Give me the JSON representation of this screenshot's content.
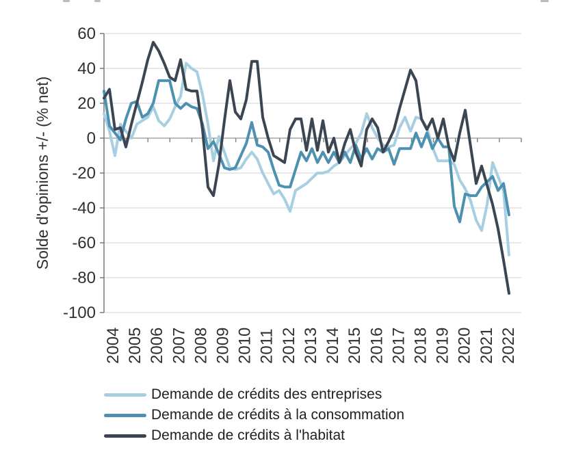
{
  "chart_data": {
    "type": "line",
    "title": "",
    "ylabel": "Solde d'opinions +/- (% net)",
    "ylim": [
      -100,
      60
    ],
    "y_ticks": [
      60,
      40,
      20,
      0,
      -20,
      -40,
      -60,
      -80,
      -100
    ],
    "x_years": [
      "2004",
      "2005",
      "2006",
      "2007",
      "2008",
      "2009",
      "2010",
      "2011",
      "2012",
      "2013",
      "2014",
      "2015",
      "2016",
      "2017",
      "2018",
      "2019",
      "2020",
      "2021",
      "2022"
    ],
    "frequency": "quarterly",
    "x_range": "2004Q1 - 2022Q3",
    "grid": "horizontal",
    "legend_position": "bottom-left",
    "colors": {
      "gridline": "#d9d9d9",
      "zero_line": "#a6a6a6",
      "axis": "#808080",
      "tick_text": "#303030",
      "legend_text": "#1f1f1f"
    },
    "series": [
      {
        "id": "entreprises",
        "name": "Demande de crédits des entreprises",
        "color": "#a8cee2",
        "values": [
          14,
          4,
          -10,
          8,
          4,
          0,
          8,
          10,
          12,
          18,
          10,
          7,
          11,
          18,
          24,
          43,
          40,
          38,
          25,
          8,
          -13,
          1,
          -8,
          -17,
          -18,
          -17,
          -12,
          -8,
          -12,
          -20,
          -26,
          -32,
          -30,
          -35,
          -42,
          -30,
          -28,
          -26,
          -23,
          -20,
          -20,
          -19,
          -16,
          -14,
          -10,
          -6,
          -3,
          3,
          14,
          6,
          0,
          -4,
          -5,
          -4,
          6,
          12,
          4,
          12,
          11,
          6,
          -5,
          -13,
          -13,
          -13,
          -15,
          -24,
          -29,
          -36,
          -47,
          -53,
          -38,
          -14,
          -22,
          -30,
          -67
        ]
      },
      {
        "id": "consommation",
        "name": "Demande de crédits à la consommation",
        "color": "#4d91b0",
        "values": [
          27,
          7,
          3,
          -1,
          11,
          20,
          21,
          12,
          14,
          20,
          33,
          33,
          33,
          20,
          17,
          20,
          18,
          17,
          8,
          -6,
          -2,
          -9,
          -17,
          -18,
          -17,
          -10,
          -3,
          9,
          -4,
          -5,
          -8,
          -18,
          -27,
          -28,
          -28,
          -18,
          -8,
          -13,
          -6,
          -14,
          -8,
          -14,
          -8,
          -14,
          -8,
          -14,
          -4,
          -12,
          -6,
          -12,
          -6,
          -8,
          -6,
          -15,
          -6,
          -6,
          -6,
          3,
          -5,
          3,
          -6,
          0,
          -5,
          -5,
          -39,
          -48,
          -32,
          -33,
          -33,
          -28,
          -25,
          -22,
          -30,
          -26,
          -44
        ]
      },
      {
        "id": "habitat",
        "name": "Demande de crédits à l'habitat",
        "color": "#3b4652",
        "values": [
          23,
          28,
          5,
          6,
          -5,
          8,
          20,
          32,
          45,
          55,
          50,
          43,
          35,
          33,
          45,
          28,
          27,
          27,
          5,
          -28,
          -33,
          -15,
          10,
          33,
          15,
          11,
          22,
          44,
          44,
          12,
          0,
          -10,
          -12,
          -14,
          5,
          11,
          11,
          -7,
          11,
          -7,
          10,
          -8,
          0,
          -14,
          -3,
          5,
          -8,
          -16,
          5,
          11,
          6,
          -8,
          -2,
          5,
          17,
          28,
          39,
          33,
          11,
          5,
          11,
          0,
          11,
          -5,
          -13,
          3,
          16,
          -5,
          -26,
          -16,
          -27,
          -38,
          -52,
          -70,
          -89
        ]
      }
    ]
  },
  "legend": {
    "items": [
      "Demande de crédits des entreprises",
      "Demande de crédits à la consommation",
      "Demande de crédits à l'habitat"
    ]
  }
}
